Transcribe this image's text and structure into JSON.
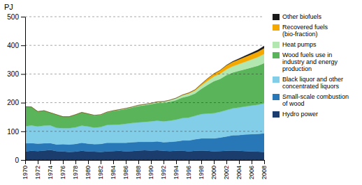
{
  "chart_data": {
    "type": "area",
    "stacked": true,
    "y_label": "PJ",
    "x": [
      1970,
      1971,
      1972,
      1973,
      1974,
      1975,
      1976,
      1977,
      1978,
      1979,
      1980,
      1981,
      1982,
      1983,
      1984,
      1985,
      1986,
      1987,
      1988,
      1989,
      1990,
      1991,
      1992,
      1993,
      1994,
      1995,
      1996,
      1997,
      1998,
      1999,
      2000,
      2001,
      2002,
      2003,
      2004,
      2005,
      2006,
      2007,
      2008
    ],
    "series": [
      {
        "name": "Hydro power",
        "color": "#1b3d6e",
        "values": [
          30,
          32,
          31,
          33,
          35,
          31,
          30,
          28,
          29,
          32,
          30,
          29,
          28,
          30,
          31,
          32,
          30,
          31,
          33,
          34,
          33,
          34,
          32,
          31,
          32,
          33,
          30,
          32,
          33,
          32,
          30,
          31,
          32,
          33,
          32,
          31,
          30,
          29,
          28
        ]
      },
      {
        "name": "Small-scale combustion\nof wood",
        "color": "#2878b8",
        "values": [
          28,
          27,
          26,
          25,
          24,
          23,
          25,
          26,
          27,
          28,
          27,
          26,
          28,
          30,
          29,
          28,
          30,
          31,
          30,
          29,
          30,
          31,
          30,
          32,
          33,
          35,
          38,
          40,
          42,
          43,
          45,
          47,
          50,
          53,
          55,
          58,
          60,
          62,
          65
        ]
      },
      {
        "name": "Black liquor and other\nconcentrated liquors",
        "color": "#82cde8",
        "values": [
          60,
          62,
          60,
          62,
          62,
          58,
          56,
          57,
          58,
          60,
          60,
          58,
          59,
          62,
          63,
          64,
          66,
          67,
          68,
          70,
          72,
          72,
          73,
          74,
          76,
          78,
          80,
          82,
          85,
          87,
          88,
          90,
          92,
          94,
          96,
          98,
          100,
          102,
          105
        ]
      },
      {
        "name": "Wood fuels use in\nindustry and energy\nproduction",
        "color": "#5ab55a",
        "values": [
          68,
          64,
          52,
          52,
          44,
          46,
          40,
          40,
          44,
          46,
          44,
          42,
          42,
          44,
          48,
          50,
          52,
          54,
          57,
          58,
          60,
          62,
          64,
          66,
          68,
          72,
          75,
          78,
          88,
          100,
          112,
          115,
          122,
          125,
          128,
          130,
          133,
          136,
          140
        ]
      },
      {
        "name": "Heat pumps",
        "color": "#b2e8b0",
        "values": [
          0,
          0,
          0,
          0,
          0,
          0,
          0,
          0,
          0,
          0,
          0,
          1,
          1,
          1,
          1,
          2,
          2,
          2,
          3,
          3,
          3,
          4,
          5,
          6,
          7,
          8,
          9,
          10,
          12,
          14,
          16,
          18,
          20,
          22,
          24,
          26,
          28,
          30,
          32
        ]
      },
      {
        "name": "Recovered fuels\n(bio-fraction)",
        "color": "#f5a800",
        "values": [
          0,
          0,
          0,
          0,
          0,
          0,
          0,
          0,
          0,
          0,
          0,
          0,
          0,
          0,
          0,
          0,
          0,
          0,
          0,
          0,
          0,
          0,
          0,
          0,
          0,
          1,
          2,
          3,
          5,
          8,
          10,
          12,
          14,
          15,
          16,
          17,
          18,
          19,
          20
        ]
      },
      {
        "name": "Other biofuels",
        "color": "#1a1a1a",
        "values": [
          0,
          0,
          0,
          0,
          0,
          0,
          0,
          0,
          0,
          0,
          0,
          0,
          0,
          0,
          0,
          0,
          0,
          0,
          0,
          0,
          0,
          0,
          0,
          0,
          0,
          0,
          0,
          0,
          0,
          0,
          0,
          0,
          1,
          2,
          3,
          4,
          5,
          6,
          8
        ]
      }
    ],
    "xlim": [
      1970,
      2008
    ],
    "xticks": [
      1970,
      1972,
      1974,
      1976,
      1978,
      1980,
      1982,
      1984,
      1986,
      1988,
      1990,
      1992,
      1994,
      1996,
      1998,
      2000,
      2002,
      2004,
      2006,
      2008
    ],
    "ylim": [
      0,
      500
    ],
    "yticks": [
      0,
      100,
      200,
      300,
      400,
      500
    ],
    "grid": true,
    "legend": "right"
  }
}
